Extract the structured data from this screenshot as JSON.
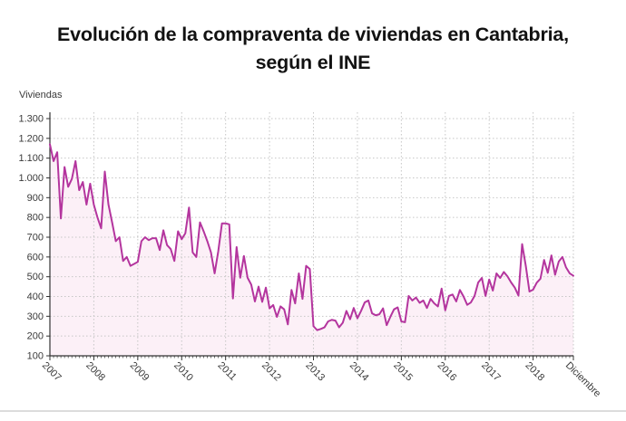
{
  "title": "Evolución de la compraventa de viviendas en Cantabria, según el INE",
  "title_lines": [
    "Evolución de la compraventa de viviendas en Cantabria,",
    "según el INE"
  ],
  "colors": {
    "line": "#b4359e",
    "area_fill": "#fcf0f7",
    "grid": "#c6c6c6",
    "axis": "#333333",
    "text": "#3a3a3a",
    "title_text": "#121212"
  },
  "chart_data": {
    "type": "line",
    "title": "Evolución de la compraventa de viviendas en Cantabria, según el INE",
    "xlabel": "",
    "ylabel": "Viviendas",
    "ylim": [
      100,
      1300
    ],
    "grid": true,
    "legend": "none",
    "line_color": "#b4359e",
    "area_color": "#fcf0f7",
    "y_ticks": [
      100,
      200,
      300,
      400,
      500,
      600,
      700,
      800,
      900,
      1000,
      1100,
      1200,
      1300
    ],
    "y_tick_labels": [
      "100",
      "200",
      "300",
      "400",
      "500",
      "600",
      "700",
      "800",
      "900",
      "1.000",
      "1.100",
      "1.200",
      "1.300"
    ],
    "x_ticks": [
      {
        "label": "2007",
        "month_index": 0
      },
      {
        "label": "2008",
        "month_index": 12
      },
      {
        "label": "2009",
        "month_index": 24
      },
      {
        "label": "2010",
        "month_index": 36
      },
      {
        "label": "2011",
        "month_index": 48
      },
      {
        "label": "2012",
        "month_index": 60
      },
      {
        "label": "2013",
        "month_index": 72
      },
      {
        "label": "2014",
        "month_index": 84
      },
      {
        "label": "2015",
        "month_index": 96
      },
      {
        "label": "2016",
        "month_index": 108
      },
      {
        "label": "2017",
        "month_index": 120
      },
      {
        "label": "2018",
        "month_index": 132
      },
      {
        "label": "Diciembre",
        "month_index": 143
      }
    ],
    "series": [
      {
        "name": "Viviendas",
        "frequency": "monthly",
        "start": "2007-01",
        "end": "2018-12",
        "values": [
          1170,
          1085,
          1130,
          795,
          1055,
          955,
          995,
          1085,
          938,
          979,
          865,
          971,
          865,
          800,
          745,
          1032,
          865,
          775,
          680,
          700,
          580,
          600,
          555,
          565,
          575,
          680,
          700,
          685,
          695,
          695,
          635,
          735,
          660,
          640,
          580,
          730,
          690,
          720,
          850,
          623,
          600,
          775,
          730,
          680,
          623,
          517,
          630,
          770,
          770,
          765,
          390,
          650,
          495,
          605,
          495,
          460,
          375,
          450,
          373,
          445,
          340,
          357,
          297,
          350,
          335,
          259,
          433,
          365,
          517,
          388,
          555,
          539,
          250,
          230,
          236,
          244,
          274,
          282,
          278,
          244,
          267,
          327,
          285,
          342,
          290,
          327,
          370,
          380,
          315,
          305,
          310,
          340,
          255,
          297,
          335,
          345,
          274,
          270,
          403,
          380,
          395,
          368,
          380,
          342,
          388,
          365,
          350,
          440,
          330,
          403,
          410,
          375,
          433,
          400,
          358,
          370,
          403,
          471,
          494,
          403,
          486,
          430,
          517,
          494,
          524,
          502,
          471,
          445,
          405,
          665,
          555,
          425,
          435,
          470,
          490,
          585,
          520,
          608,
          510,
          577,
          600,
          547,
          517,
          505
        ]
      }
    ]
  }
}
